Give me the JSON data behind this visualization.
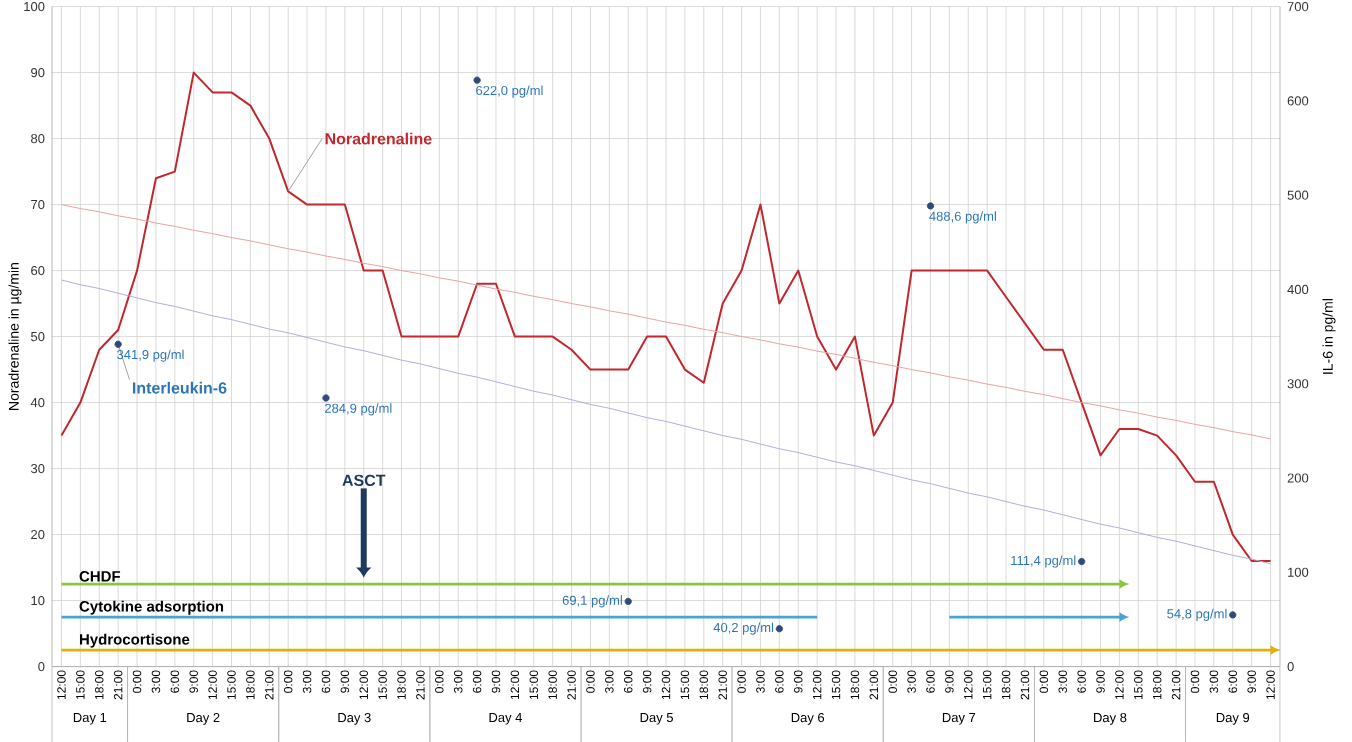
{
  "chart_data": {
    "type": "line",
    "ylabel": "Noradrenaline in µg/min",
    "y2label": "IL-6 in pg/ml",
    "categories": [
      "12:00",
      "15:00",
      "18:00",
      "21:00",
      "0:00",
      "3:00",
      "6:00",
      "9:00",
      "12:00",
      "15:00",
      "18:00",
      "21:00",
      "0:00",
      "3:00",
      "6:00",
      "9:00",
      "12:00",
      "15:00",
      "18:00",
      "21:00",
      "0:00",
      "3:00",
      "6:00",
      "9:00",
      "12:00",
      "15:00",
      "18:00",
      "21:00",
      "0:00",
      "3:00",
      "6:00",
      "9:00",
      "12:00",
      "15:00",
      "18:00",
      "21:00",
      "0:00",
      "3:00",
      "6:00",
      "9:00",
      "12:00",
      "15:00",
      "18:00",
      "21:00",
      "0:00",
      "3:00",
      "6:00",
      "9:00",
      "12:00",
      "15:00",
      "18:00",
      "21:00",
      "0:00",
      "3:00",
      "6:00",
      "9:00",
      "12:00",
      "15:00",
      "18:00",
      "21:00",
      "0:00",
      "3:00",
      "6:00",
      "9:00",
      "12:00"
    ],
    "ylim": [
      0,
      100
    ],
    "yticks": [
      0,
      10,
      20,
      30,
      40,
      50,
      60,
      70,
      80,
      90,
      100
    ],
    "y2lim": [
      0,
      700
    ],
    "y2ticks": [
      0,
      100,
      200,
      300,
      400,
      500,
      600,
      700
    ],
    "grid": true,
    "line_style": "solid",
    "series": [
      {
        "type": "line",
        "name": "Noradrenaline",
        "color": "#c0282d",
        "values": [
          35,
          40,
          48,
          51,
          60,
          74,
          75,
          90,
          87,
          87,
          85,
          80,
          72,
          70,
          70,
          70,
          60,
          60,
          50,
          50,
          50,
          50,
          58,
          58,
          50,
          50,
          50,
          48,
          45,
          45,
          45,
          50,
          50,
          45,
          43,
          55,
          60,
          70,
          55,
          60,
          50,
          45,
          50,
          35,
          40,
          60,
          60,
          60,
          60,
          60,
          56,
          52,
          48,
          48,
          40,
          32,
          36,
          36,
          35,
          32,
          28,
          28,
          20,
          16,
          16
        ]
      },
      {
        "type": "line",
        "color": "#e9a3a3",
        "values": [
          70.0,
          69.4,
          68.9,
          68.3,
          67.8,
          67.2,
          66.7,
          66.1,
          65.6,
          65.0,
          64.5,
          63.9,
          63.3,
          62.8,
          62.2,
          61.7,
          61.1,
          60.6,
          60.0,
          59.5,
          58.9,
          58.4,
          57.8,
          57.2,
          56.7,
          56.1,
          55.6,
          55.0,
          54.5,
          53.9,
          53.4,
          52.8,
          52.2,
          51.7,
          51.1,
          50.6,
          50.0,
          49.5,
          48.9,
          48.4,
          47.8,
          47.3,
          46.7,
          46.1,
          45.6,
          45.0,
          44.5,
          43.9,
          43.4,
          42.8,
          42.3,
          41.7,
          41.2,
          40.6,
          40.0,
          39.5,
          38.9,
          38.4,
          37.8,
          37.3,
          36.7,
          36.2,
          35.6,
          35.1,
          34.5
        ]
      },
      {
        "type": "scatter",
        "name": "Interleukin-6",
        "axis": "y2",
        "color": "#2f4a7a",
        "values": [
          null,
          null,
          null,
          341.9,
          null,
          null,
          null,
          null,
          null,
          null,
          null,
          null,
          null,
          null,
          284.9,
          null,
          null,
          null,
          null,
          null,
          null,
          null,
          622.0,
          null,
          null,
          null,
          null,
          null,
          null,
          null,
          69.1,
          null,
          null,
          null,
          null,
          null,
          null,
          null,
          40.2,
          null,
          null,
          null,
          null,
          null,
          null,
          null,
          488.6,
          null,
          null,
          null,
          null,
          null,
          null,
          null,
          111.4,
          null,
          null,
          null,
          null,
          null,
          null,
          null,
          54.8,
          null,
          null
        ],
        "value_labels": [
          null,
          null,
          null,
          "341,9 pg/ml",
          null,
          null,
          null,
          null,
          null,
          null,
          null,
          null,
          null,
          null,
          "284,9 pg/ml",
          null,
          null,
          null,
          null,
          null,
          null,
          null,
          "622,0 pg/ml",
          null,
          null,
          null,
          null,
          null,
          null,
          null,
          "69,1 pg/ml",
          null,
          null,
          null,
          null,
          null,
          null,
          null,
          "40,2 pg/ml",
          null,
          null,
          null,
          null,
          null,
          null,
          null,
          "488,6 pg/ml",
          null,
          null,
          null,
          null,
          null,
          null,
          null,
          "111,4 pg/ml",
          null,
          null,
          null,
          null,
          null,
          null,
          null,
          "54,8 pg/ml",
          null,
          null
        ]
      },
      {
        "type": "line",
        "axis": "y2",
        "color": "#aeb0d8",
        "values": [
          410,
          405,
          401,
          396,
          391,
          386,
          382,
          377,
          372,
          368,
          363,
          358,
          354,
          349,
          344,
          339,
          335,
          330,
          325,
          321,
          316,
          311,
          307,
          302,
          297,
          292,
          288,
          283,
          278,
          274,
          269,
          264,
          260,
          255,
          250,
          245,
          241,
          236,
          231,
          227,
          222,
          217,
          213,
          208,
          203,
          198,
          194,
          189,
          184,
          180,
          175,
          170,
          166,
          161,
          156,
          151,
          147,
          142,
          137,
          133,
          128,
          123,
          118,
          114,
          109
        ]
      },
      {
        "type": "line",
        "name": "CHDF",
        "color": "#8cc63e",
        "values": [
          12.5,
          12.5,
          12.5,
          12.5,
          12.5,
          12.5,
          12.5,
          12.5,
          12.5,
          12.5,
          12.5,
          12.5,
          12.5,
          12.5,
          12.5,
          12.5,
          12.5,
          12.5,
          12.5,
          12.5,
          12.5,
          12.5,
          12.5,
          12.5,
          12.5,
          12.5,
          12.5,
          12.5,
          12.5,
          12.5,
          12.5,
          12.5,
          12.5,
          12.5,
          12.5,
          12.5,
          12.5,
          12.5,
          12.5,
          12.5,
          12.5,
          12.5,
          12.5,
          12.5,
          12.5,
          12.5,
          12.5,
          12.5,
          12.5,
          12.5,
          12.5,
          12.5,
          12.5,
          12.5,
          12.5,
          12.5,
          12.5,
          null,
          null,
          null,
          null,
          null,
          null,
          null,
          null
        ]
      },
      {
        "type": "line",
        "name": "Cytokine adsorption",
        "color": "#4ba3d3",
        "values": [
          7.5,
          7.5,
          7.5,
          7.5,
          7.5,
          7.5,
          7.5,
          7.5,
          7.5,
          7.5,
          7.5,
          7.5,
          7.5,
          7.5,
          7.5,
          7.5,
          7.5,
          7.5,
          7.5,
          7.5,
          7.5,
          7.5,
          7.5,
          7.5,
          7.5,
          7.5,
          7.5,
          7.5,
          7.5,
          7.5,
          7.5,
          7.5,
          7.5,
          7.5,
          7.5,
          7.5,
          7.5,
          7.5,
          7.5,
          7.5,
          7.5,
          null,
          null,
          null,
          null,
          null,
          null,
          7.5,
          7.5,
          7.5,
          7.5,
          7.5,
          7.5,
          7.5,
          7.5,
          7.5,
          7.5,
          null,
          null,
          null,
          null,
          null,
          null,
          null,
          null
        ]
      },
      {
        "type": "line",
        "name": "Hydrocortisone",
        "color": "#e2b007",
        "values": [
          2.5,
          2.5,
          2.5,
          2.5,
          2.5,
          2.5,
          2.5,
          2.5,
          2.5,
          2.5,
          2.5,
          2.5,
          2.5,
          2.5,
          2.5,
          2.5,
          2.5,
          2.5,
          2.5,
          2.5,
          2.5,
          2.5,
          2.5,
          2.5,
          2.5,
          2.5,
          2.5,
          2.5,
          2.5,
          2.5,
          2.5,
          2.5,
          2.5,
          2.5,
          2.5,
          2.5,
          2.5,
          2.5,
          2.5,
          2.5,
          2.5,
          2.5,
          2.5,
          2.5,
          2.5,
          2.5,
          2.5,
          2.5,
          2.5,
          2.5,
          2.5,
          2.5,
          2.5,
          2.5,
          2.5,
          2.5,
          2.5,
          2.5,
          2.5,
          2.5,
          2.5,
          2.5,
          2.5,
          2.5,
          2.5
        ]
      }
    ],
    "annotations": [
      "ASCT",
      "Day 1",
      "Day 2",
      "Day 3",
      "Day 4",
      "Day 5",
      "Day 6",
      "Day 7",
      "Day 8",
      "Day 9"
    ]
  }
}
